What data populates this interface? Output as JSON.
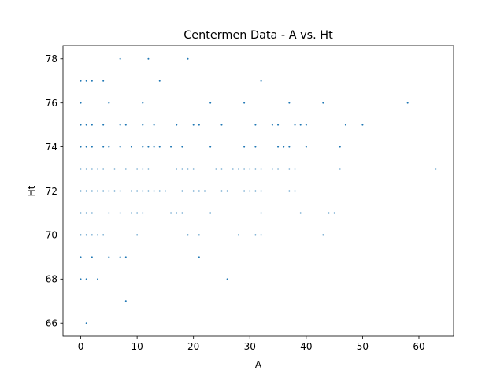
{
  "chart_data": {
    "type": "scatter",
    "title": "Centermen Data - A vs. Ht",
    "xlabel": "A",
    "ylabel": "Ht",
    "xlim": [
      -3.15,
      66.15
    ],
    "ylim": [
      65.4,
      78.6
    ],
    "xticks": [
      0,
      10,
      20,
      30,
      40,
      50,
      60
    ],
    "yticks": [
      66,
      68,
      70,
      72,
      74,
      76,
      78
    ],
    "grid": false,
    "marker_color": "#1f77b4",
    "series": [
      {
        "points": [
          [
            7,
            78
          ],
          [
            12,
            78
          ],
          [
            19,
            78
          ],
          [
            0,
            77
          ],
          [
            1,
            77
          ],
          [
            2,
            77
          ],
          [
            4,
            77
          ],
          [
            14,
            77
          ],
          [
            32,
            77
          ],
          [
            0,
            76
          ],
          [
            5,
            76
          ],
          [
            11,
            76
          ],
          [
            23,
            76
          ],
          [
            29,
            76
          ],
          [
            37,
            76
          ],
          [
            43,
            76
          ],
          [
            58,
            76
          ],
          [
            0,
            75
          ],
          [
            1,
            75
          ],
          [
            2,
            75
          ],
          [
            4,
            75
          ],
          [
            7,
            75
          ],
          [
            8,
            75
          ],
          [
            11,
            75
          ],
          [
            13,
            75
          ],
          [
            17,
            75
          ],
          [
            20,
            75
          ],
          [
            21,
            75
          ],
          [
            25,
            75
          ],
          [
            31,
            75
          ],
          [
            34,
            75
          ],
          [
            35,
            75
          ],
          [
            38,
            75
          ],
          [
            39,
            75
          ],
          [
            40,
            75
          ],
          [
            47,
            75
          ],
          [
            50,
            75
          ],
          [
            0,
            74
          ],
          [
            1,
            74
          ],
          [
            2,
            74
          ],
          [
            4,
            74
          ],
          [
            5,
            74
          ],
          [
            7,
            74
          ],
          [
            9,
            74
          ],
          [
            11,
            74
          ],
          [
            12,
            74
          ],
          [
            13,
            74
          ],
          [
            14,
            74
          ],
          [
            16,
            74
          ],
          [
            18,
            74
          ],
          [
            23,
            74
          ],
          [
            29,
            74
          ],
          [
            31,
            74
          ],
          [
            35,
            74
          ],
          [
            36,
            74
          ],
          [
            37,
            74
          ],
          [
            40,
            74
          ],
          [
            46,
            74
          ],
          [
            0,
            73
          ],
          [
            1,
            73
          ],
          [
            2,
            73
          ],
          [
            3,
            73
          ],
          [
            4,
            73
          ],
          [
            6,
            73
          ],
          [
            8,
            73
          ],
          [
            10,
            73
          ],
          [
            11,
            73
          ],
          [
            12,
            73
          ],
          [
            17,
            73
          ],
          [
            18,
            73
          ],
          [
            19,
            73
          ],
          [
            20,
            73
          ],
          [
            24,
            73
          ],
          [
            25,
            73
          ],
          [
            27,
            73
          ],
          [
            28,
            73
          ],
          [
            29,
            73
          ],
          [
            30,
            73
          ],
          [
            31,
            73
          ],
          [
            32,
            73
          ],
          [
            34,
            73
          ],
          [
            35,
            73
          ],
          [
            37,
            73
          ],
          [
            38,
            73
          ],
          [
            46,
            73
          ],
          [
            63,
            73
          ],
          [
            0,
            72
          ],
          [
            1,
            72
          ],
          [
            2,
            72
          ],
          [
            3,
            72
          ],
          [
            4,
            72
          ],
          [
            5,
            72
          ],
          [
            6,
            72
          ],
          [
            7,
            72
          ],
          [
            9,
            72
          ],
          [
            10,
            72
          ],
          [
            11,
            72
          ],
          [
            12,
            72
          ],
          [
            13,
            72
          ],
          [
            14,
            72
          ],
          [
            15,
            72
          ],
          [
            18,
            72
          ],
          [
            20,
            72
          ],
          [
            21,
            72
          ],
          [
            22,
            72
          ],
          [
            25,
            72
          ],
          [
            26,
            72
          ],
          [
            29,
            72
          ],
          [
            30,
            72
          ],
          [
            31,
            72
          ],
          [
            32,
            72
          ],
          [
            37,
            72
          ],
          [
            38,
            72
          ],
          [
            0,
            71
          ],
          [
            1,
            71
          ],
          [
            2,
            71
          ],
          [
            5,
            71
          ],
          [
            7,
            71
          ],
          [
            9,
            71
          ],
          [
            10,
            71
          ],
          [
            11,
            71
          ],
          [
            16,
            71
          ],
          [
            17,
            71
          ],
          [
            18,
            71
          ],
          [
            23,
            71
          ],
          [
            32,
            71
          ],
          [
            39,
            71
          ],
          [
            44,
            71
          ],
          [
            45,
            71
          ],
          [
            0,
            70
          ],
          [
            1,
            70
          ],
          [
            2,
            70
          ],
          [
            3,
            70
          ],
          [
            4,
            70
          ],
          [
            10,
            70
          ],
          [
            19,
            70
          ],
          [
            21,
            70
          ],
          [
            28,
            70
          ],
          [
            31,
            70
          ],
          [
            32,
            70
          ],
          [
            43,
            70
          ],
          [
            0,
            69
          ],
          [
            2,
            69
          ],
          [
            5,
            69
          ],
          [
            7,
            69
          ],
          [
            8,
            69
          ],
          [
            21,
            69
          ],
          [
            0,
            68
          ],
          [
            1,
            68
          ],
          [
            3,
            68
          ],
          [
            26,
            68
          ],
          [
            8,
            67
          ],
          [
            1,
            66
          ]
        ]
      }
    ]
  }
}
